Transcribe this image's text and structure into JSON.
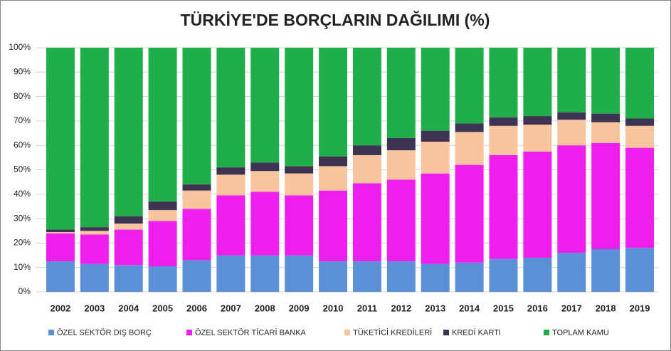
{
  "chart_data": {
    "type": "stacked-bar",
    "title": "TÜRKİYE'DE BORÇLARIN DAĞILIMI (%)",
    "categories": [
      "2002",
      "2003",
      "2004",
      "2005",
      "2006",
      "2007",
      "2008",
      "2009",
      "2010",
      "2011",
      "2012",
      "2013",
      "2014",
      "2015",
      "2016",
      "2017",
      "2018",
      "2019"
    ],
    "series": [
      {
        "name": "ÖZEL SEKTÖR DIŞ BORÇ",
        "color": "#5b8fd6",
        "values": [
          12.5,
          11.5,
          11,
          10.5,
          13,
          15,
          15,
          15,
          12.5,
          12.5,
          12.5,
          11.5,
          12,
          13.5,
          14,
          16,
          17.5,
          18
        ]
      },
      {
        "name": "ÖZEL SEKTÖR TİCARİ BANKA",
        "color": "#ee1fec",
        "values": [
          11.5,
          12,
          14.5,
          18.5,
          21,
          24.5,
          26,
          24.5,
          29,
          32,
          33.5,
          37,
          40,
          42.5,
          43.5,
          44,
          43.5,
          41
        ]
      },
      {
        "name": "TÜKETİCİ KREDİLERİ",
        "color": "#f8c49d",
        "values": [
          0.5,
          1.5,
          2.5,
          4.5,
          7.5,
          8.5,
          8.5,
          9,
          10,
          11.5,
          12,
          13,
          13.5,
          12,
          11,
          10.5,
          8.5,
          9
        ]
      },
      {
        "name": "KREDİ KARTI",
        "color": "#3e3352",
        "values": [
          1,
          1.5,
          3,
          3.5,
          2.5,
          3,
          3.5,
          3,
          4,
          4,
          5,
          4.5,
          3.5,
          3.5,
          3.5,
          3,
          3.5,
          3
        ]
      },
      {
        "name": "TOPLAM KAMU",
        "color": "#1fae4a",
        "values": [
          74.5,
          73.5,
          69,
          63,
          56,
          49,
          47,
          48.5,
          44.5,
          40,
          37,
          34,
          31,
          28.5,
          28,
          26.5,
          27,
          29
        ]
      }
    ],
    "ylim": [
      0,
      100
    ],
    "yticks": [
      {
        "value": 0,
        "label": "0%"
      },
      {
        "value": 10,
        "label": "10%"
      },
      {
        "value": 20,
        "label": "20%"
      },
      {
        "value": 30,
        "label": "30%"
      },
      {
        "value": 40,
        "label": "40%"
      },
      {
        "value": 50,
        "label": "50%"
      },
      {
        "value": 60,
        "label": "60%"
      },
      {
        "value": 70,
        "label": "70%"
      },
      {
        "value": 80,
        "label": "80%"
      },
      {
        "value": 90,
        "label": "90%"
      },
      {
        "value": 100,
        "label": "100%"
      }
    ],
    "grid": true,
    "legend": "bottom"
  }
}
